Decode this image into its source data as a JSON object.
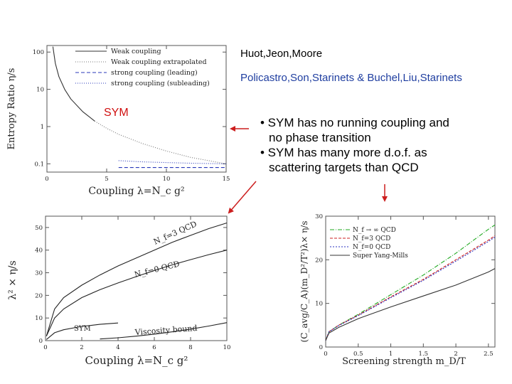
{
  "credits": {
    "first": "Huot,Jeon,Moore",
    "second": "Policastro,Son,Starinets & Buchel,Liu,Starinets"
  },
  "sym_label": "SYM",
  "bullets": {
    "b1_line1": "• SYM has no running coupling and",
    "b1_line2": "no phase transition",
    "b2_line1": "• SYM has many more d.o.f. as",
    "b2_line2": "scattering targets than QCD"
  },
  "colors": {
    "arrow": "#cc1e1e",
    "highlight": "#d01010",
    "credit_blue": "#1f3ea0"
  },
  "chart_data": [
    {
      "type": "line",
      "title": "",
      "xlabel": "Coupling λ=N_c g²",
      "ylabel": "Entropy Ratio η/s",
      "xlim": [
        0,
        15
      ],
      "ylim": [
        0.06,
        150
      ],
      "yscale": "log",
      "x_ticks": [
        "0",
        "5",
        "10",
        "15"
      ],
      "y_ticks": [
        "0.1",
        "1",
        "10",
        "100"
      ],
      "legend_position": "top-right",
      "legend": [
        "Weak coupling",
        "Weak coupling extrapolated",
        "strong coupling (leading)",
        "strong coupling (subleading)"
      ],
      "series": [
        {
          "name": "Weak coupling",
          "x": [
            0.5,
            0.7,
            1.0,
            1.5,
            2.0,
            3.0,
            4.0
          ],
          "y": [
            140,
            50,
            22,
            9.8,
            5.5,
            2.5,
            1.4
          ]
        },
        {
          "name": "Weak coupling extrapolated",
          "x": [
            4.0,
            5.0,
            6.0,
            8.0,
            10.0,
            12.0,
            15.0
          ],
          "y": [
            1.4,
            0.9,
            0.62,
            0.35,
            0.22,
            0.15,
            0.1
          ]
        },
        {
          "name": "strong coupling (leading)",
          "x": [
            6.0,
            15.0
          ],
          "y": [
            0.0796,
            0.0796
          ]
        },
        {
          "name": "strong coupling (subleading)",
          "x": [
            6.0,
            8.0,
            10.0,
            12.0,
            15.0
          ],
          "y": [
            0.122,
            0.113,
            0.108,
            0.104,
            0.1
          ]
        }
      ]
    },
    {
      "type": "line",
      "title": "",
      "xlabel": "Coupling λ=N_c g²",
      "ylabel": "λ² × η/s",
      "xlim": [
        0,
        10
      ],
      "ylim": [
        0,
        55
      ],
      "x_ticks": [
        "0",
        "2",
        "4",
        "6",
        "8",
        "10"
      ],
      "y_ticks": [
        "0",
        "10",
        "20",
        "30",
        "40",
        "50"
      ],
      "annotations": [
        "N_f=3 QCD",
        "N_f=0 QCD",
        "SYM",
        "Viscosity bound"
      ],
      "series": [
        {
          "name": "N_f=3 QCD",
          "x": [
            0.05,
            0.5,
            1,
            2,
            3,
            4,
            5,
            6,
            7,
            8,
            9,
            10
          ],
          "y": [
            2,
            14,
            19,
            24.5,
            29,
            33,
            36.5,
            40,
            43.5,
            46.5,
            49.5,
            52
          ]
        },
        {
          "name": "N_f=0 QCD",
          "x": [
            0.05,
            0.5,
            1,
            2,
            3,
            4,
            5,
            6,
            7,
            8,
            9,
            10
          ],
          "y": [
            2,
            10,
            14,
            19,
            22.5,
            25.5,
            28.3,
            31,
            33.5,
            35.8,
            38,
            40
          ]
        },
        {
          "name": "SYM",
          "x": [
            0.05,
            0.5,
            1,
            2,
            3,
            4
          ],
          "y": [
            0.5,
            3.5,
            4.8,
            6.3,
            7.2,
            7.8
          ]
        },
        {
          "name": "Viscosity bound",
          "x": [
            3,
            4,
            5,
            6,
            7,
            8,
            9,
            10
          ],
          "y": [
            0.72,
            1.27,
            1.99,
            2.86,
            3.9,
            5.09,
            6.45,
            7.96
          ]
        }
      ]
    },
    {
      "type": "line",
      "title": "",
      "xlabel": "Screening strength m_D/T",
      "ylabel": "(C_avg/C_A)(m_D²/T²)λ× η/s",
      "xlim": [
        0,
        2.6
      ],
      "ylim": [
        0,
        30
      ],
      "x_ticks": [
        "0",
        "0.5",
        "1",
        "1.5",
        "2",
        "2.5"
      ],
      "y_ticks": [
        "0",
        "10",
        "20",
        "30"
      ],
      "legend_position": "top-left",
      "legend": [
        "N_f → ∞ QCD",
        "N_f=3 QCD",
        "N_f=0 QCD",
        "Super Yang-Mills"
      ],
      "series": [
        {
          "name": "N_f → ∞ QCD",
          "x": [
            0,
            0.05,
            0.2,
            0.5,
            1.0,
            1.5,
            2.0,
            2.5,
            2.6
          ],
          "y": [
            1.5,
            3.5,
            5,
            7.5,
            12,
            16.5,
            21.5,
            27,
            28
          ]
        },
        {
          "name": "N_f=3 QCD",
          "x": [
            0,
            0.05,
            0.2,
            0.5,
            1.0,
            1.5,
            2.0,
            2.5,
            2.6
          ],
          "y": [
            1.5,
            3.5,
            5,
            7.3,
            11.5,
            15.5,
            20,
            24.5,
            25.5
          ]
        },
        {
          "name": "N_f=0 QCD",
          "x": [
            0,
            0.05,
            0.2,
            0.5,
            1.0,
            1.5,
            2.0,
            2.5,
            2.6
          ],
          "y": [
            1.5,
            3.5,
            4.9,
            7.2,
            11.3,
            15.3,
            19.7,
            24.2,
            25.2
          ]
        },
        {
          "name": "Super Yang-Mills",
          "x": [
            0,
            0.05,
            0.2,
            0.5,
            1.0,
            1.5,
            2.0,
            2.5,
            2.6
          ],
          "y": [
            1.5,
            3.2,
            4.5,
            6.5,
            9.2,
            11.7,
            14.2,
            17.2,
            18
          ]
        }
      ]
    }
  ]
}
